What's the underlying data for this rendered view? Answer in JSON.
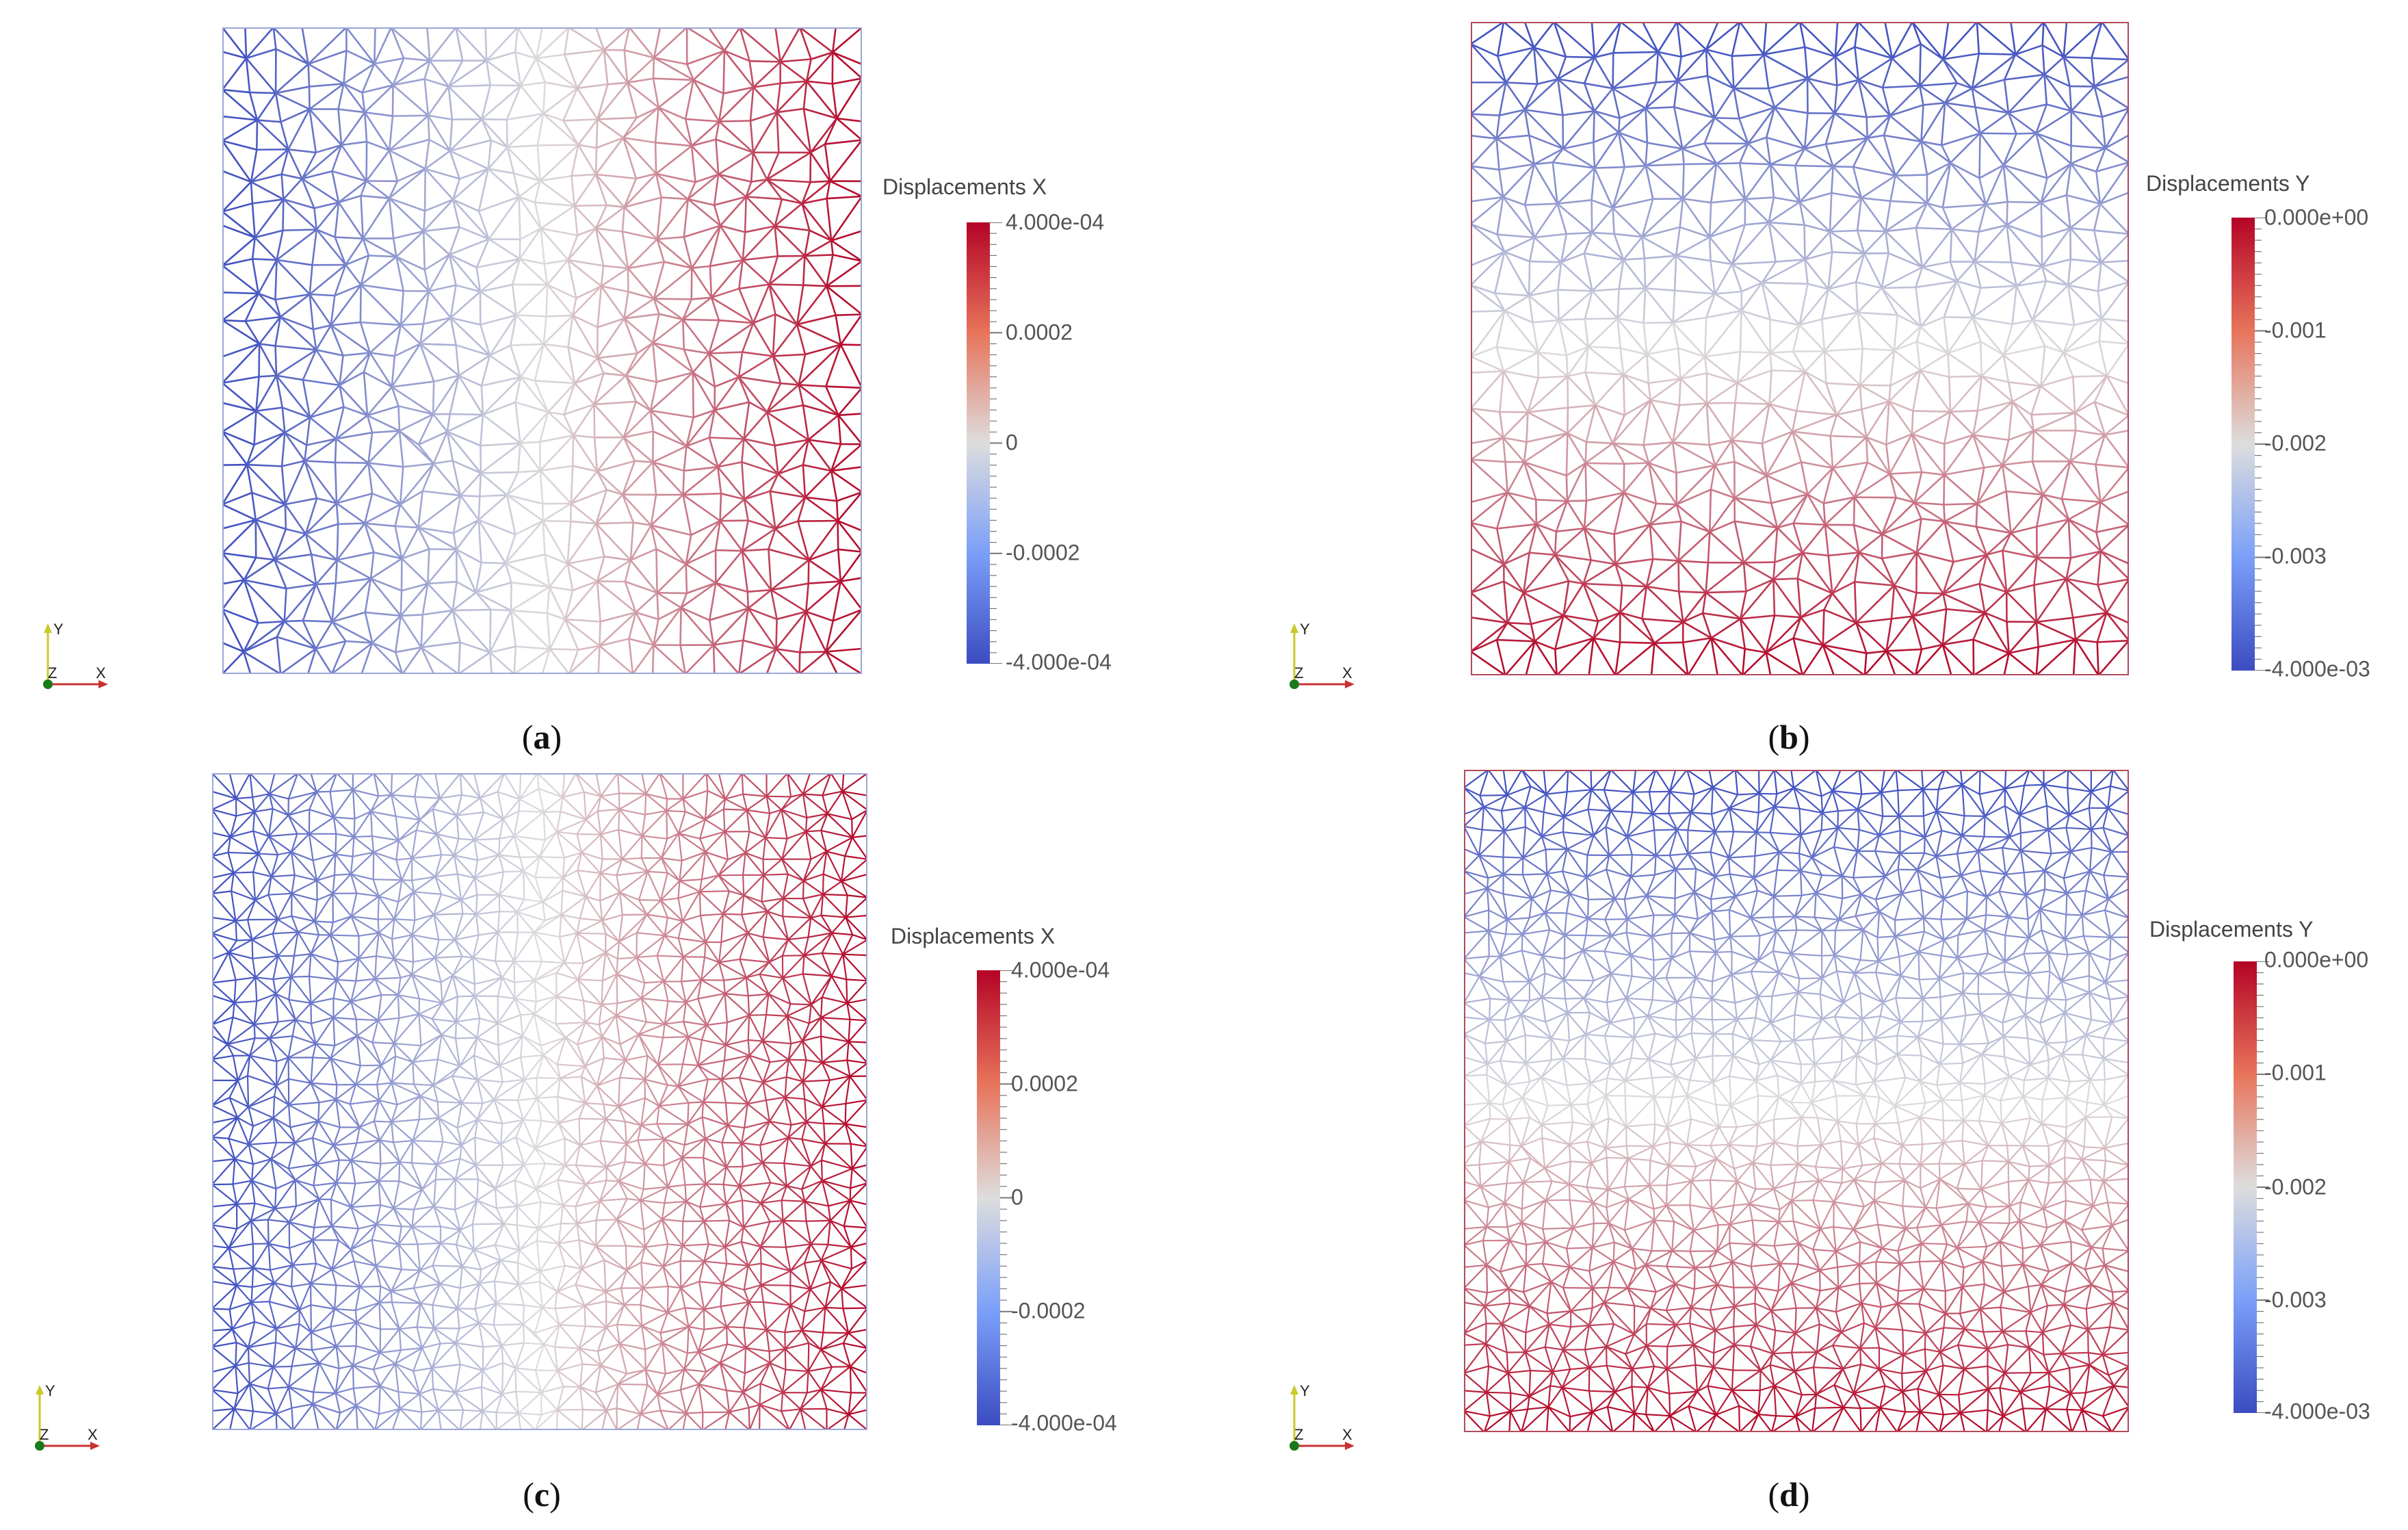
{
  "panels": [
    {
      "id": "a",
      "caption_letter": "a",
      "legend": {
        "title": "Displacements X",
        "labels": [
          "4.000e-04",
          "0.0002",
          "0",
          "-0.0002",
          "-4.000e-04"
        ]
      },
      "gradient_direction": "horizontal",
      "mesh_density": "coarse",
      "axes": {
        "y": "Y",
        "z": "Z",
        "x": "X"
      }
    },
    {
      "id": "b",
      "caption_letter": "b",
      "legend": {
        "title": "Displacements Y",
        "labels": [
          "0.000e+00",
          "-0.001",
          "-0.002",
          "-0.003",
          "-4.000e-03"
        ]
      },
      "gradient_direction": "vertical",
      "mesh_density": "coarse",
      "axes": {
        "y": "Y",
        "z": "Z",
        "x": "X"
      }
    },
    {
      "id": "c",
      "caption_letter": "c",
      "legend": {
        "title": "Displacements X",
        "labels": [
          "4.000e-04",
          "0.0002",
          "0",
          "-0.0002",
          "-4.000e-04"
        ]
      },
      "gradient_direction": "horizontal",
      "mesh_density": "fine",
      "axes": {
        "y": "Y",
        "z": "Z",
        "x": "X"
      }
    },
    {
      "id": "d",
      "caption_letter": "d",
      "legend": {
        "title": "Displacements Y",
        "labels": [
          "0.000e+00",
          "-0.001",
          "-0.002",
          "-0.003",
          "-4.000e-03"
        ]
      },
      "gradient_direction": "vertical",
      "mesh_density": "fine",
      "axes": {
        "y": "Y",
        "z": "Z",
        "x": "X"
      }
    }
  ],
  "colors": {
    "low": "#3b4cc0",
    "mid": "#dddddd",
    "high": "#b40426"
  }
}
